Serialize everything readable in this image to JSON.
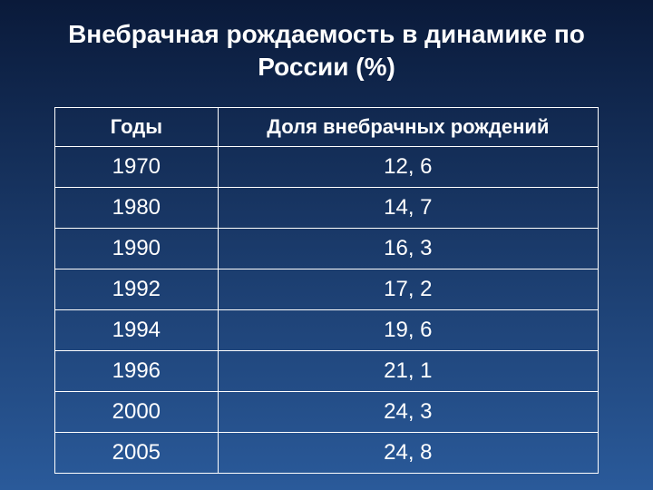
{
  "title": "Внебрачная рождаемость в динамике по России (%)",
  "table": {
    "columns": [
      "Годы",
      "Доля внебрачных рождений"
    ],
    "rows": [
      [
        "1970",
        "12, 6"
      ],
      [
        "1980",
        "14, 7"
      ],
      [
        "1990",
        "16, 3"
      ],
      [
        "1992",
        "17, 2"
      ],
      [
        "1994",
        "19, 6"
      ],
      [
        "1996",
        "21, 1"
      ],
      [
        "2000",
        "24, 3"
      ],
      [
        "2005",
        "24, 8"
      ]
    ],
    "column_widths_pct": [
      30,
      70
    ],
    "border_color": "#ffffff",
    "text_color": "#ffffff",
    "header_fontsize": 22,
    "cell_fontsize": 24
  },
  "background_gradient": {
    "type": "linear",
    "direction": "to bottom",
    "stops": [
      "#0a1a3a",
      "#1a3a6a",
      "#2a5a9a"
    ]
  },
  "title_style": {
    "color": "#ffffff",
    "fontsize": 28,
    "fontweight": "bold"
  }
}
